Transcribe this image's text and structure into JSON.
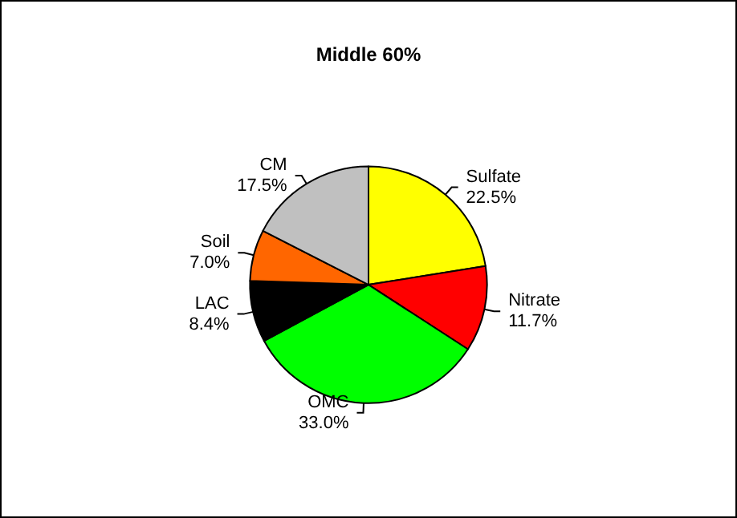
{
  "chart_data": {
    "type": "pie",
    "title": "Middle 60%",
    "categories": [
      "Sulfate",
      "Nitrate",
      "OMC",
      "LAC",
      "Soil",
      "CM"
    ],
    "values": [
      22.5,
      11.7,
      33.0,
      8.4,
      7.0,
      17.5
    ],
    "value_labels": [
      "22.5%",
      "11.7%",
      "33.0%",
      "8.4%",
      "7.0%",
      "17.5%"
    ],
    "colors": [
      "#ffff00",
      "#ff0000",
      "#00ff00",
      "#000000",
      "#ff6600",
      "#c0c0c0"
    ],
    "legend": false
  }
}
